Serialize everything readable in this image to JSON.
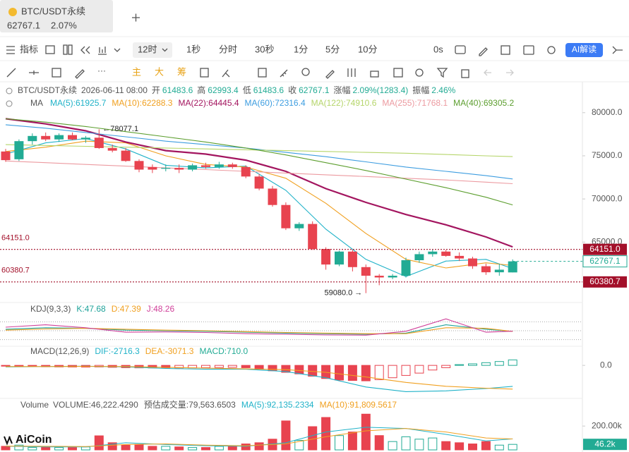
{
  "tab": {
    "title": "BTC/USDT永续",
    "change": "2.07%"
  },
  "toolbar": {
    "indicator": "指标",
    "interval": "12时",
    "intervals": [
      "1秒",
      "分时",
      "30秒",
      "1分",
      "5分",
      "10分"
    ],
    "countdown": "0s",
    "ai": "AI解读"
  },
  "draw_toolbar": {
    "buttons": [
      "主",
      "大",
      "筹"
    ]
  },
  "logo": "AiCoin",
  "chart_data": [
    {
      "type": "candlestick",
      "symbol": "BTC/USDT永续",
      "time": "2026-06-11 08:00",
      "fields": {
        "open": "开",
        "high": "高",
        "low": "低",
        "close": "收"
      },
      "change": {
        "name": "涨幅",
        "label": "2.09%(1283.4)"
      },
      "amplitude": {
        "name": "振幅",
        "label": "2.46%"
      },
      "open": [
        75500,
        74600,
        76700,
        77300,
        76900,
        77400,
        76900,
        77100,
        75900,
        75600,
        74400,
        73700,
        73500,
        73600,
        73400,
        73900,
        73700,
        74000,
        73700,
        72600,
        71200,
        69300,
        66600,
        67100,
        64200,
        62400,
        63900,
        62100,
        61100,
        60900,
        61100,
        62900,
        63600,
        63900,
        63400,
        63100,
        62200,
        61500,
        61483.6
      ],
      "high": [
        75800,
        76900,
        77600,
        77700,
        77600,
        77700,
        77300,
        78077.1,
        76300,
        75900,
        74600,
        74000,
        74000,
        74000,
        74100,
        74200,
        74300,
        74200,
        73900,
        72900,
        71500,
        69600,
        67300,
        67400,
        64400,
        64000,
        64100,
        62400,
        61300,
        61300,
        63200,
        63900,
        64151,
        64100,
        63800,
        63300,
        62500,
        62500,
        62993.4
      ],
      "low": [
        74300,
        74400,
        76300,
        76700,
        76600,
        76800,
        76500,
        75800,
        75400,
        74300,
        73100,
        73000,
        73200,
        73000,
        73200,
        73500,
        73500,
        73500,
        72400,
        71000,
        69100,
        66400,
        66300,
        64100,
        61800,
        62200,
        61600,
        59080,
        60000,
        60700,
        60900,
        62600,
        63300,
        63300,
        62800,
        61900,
        61200,
        61100,
        61483.6
      ],
      "close": [
        74500,
        76700,
        77300,
        76900,
        77400,
        76900,
        77100,
        75900,
        75600,
        74400,
        73400,
        73400,
        73600,
        73400,
        73900,
        73700,
        74000,
        73700,
        72600,
        71200,
        69300,
        66600,
        67100,
        64200,
        62400,
        63900,
        62100,
        61100,
        60900,
        61100,
        62900,
        63600,
        63900,
        63400,
        63100,
        62200,
        61500,
        61800,
        62767.1
      ],
      "up_color": "#22ab94",
      "down_color": "#e8434f",
      "ylim": [
        58200,
        80800
      ],
      "yticks": [
        {
          "value": 80000,
          "label": "80000.0"
        },
        {
          "value": 75000,
          "label": "75000.0"
        },
        {
          "value": 70000,
          "label": "70000.0"
        },
        {
          "value": 65000,
          "label": "65000.0"
        }
      ],
      "ma_title": "MA",
      "line_x": [
        0,
        3,
        6,
        9,
        12,
        15,
        18,
        21,
        24,
        27,
        30,
        33,
        36,
        38
      ],
      "series": [
        {
          "name": "MA(5):",
          "color": "#20b2c8",
          "values": [
            75200,
            76500,
            77000,
            75800,
            73900,
            73600,
            73800,
            71000,
            66500,
            63000,
            61000,
            62800,
            63000,
            61925.7
          ]
        },
        {
          "name": "MA(10):",
          "color": "#f0a020",
          "values": [
            75500,
            76000,
            76700,
            76500,
            75000,
            74000,
            73700,
            72400,
            69500,
            66000,
            63000,
            62000,
            62600,
            62288.3
          ]
        },
        {
          "name": "MA(22):",
          "color": "#a3155f",
          "values": [
            79300,
            78700,
            77900,
            76600,
            75600,
            75200,
            74500,
            73200,
            71200,
            69600,
            68200,
            67000,
            65600,
            64445.4
          ]
        },
        {
          "name": "MA(60):",
          "color": "#3d9de0",
          "values": [
            78600,
            78200,
            77700,
            77200,
            76700,
            76300,
            75900,
            75400,
            74900,
            74300,
            73700,
            73200,
            72700,
            72316.4
          ]
        },
        {
          "name": "MA(122):",
          "color": "#b5d56a",
          "values": [
            76300,
            76200,
            76100,
            76000,
            75900,
            75800,
            75700,
            75600,
            75500,
            75400,
            75300,
            75150,
            75000,
            74910.6
          ]
        },
        {
          "name": "MA(255):",
          "color": "#ec9aa0",
          "values": [
            74400,
            74200,
            74000,
            73800,
            73600,
            73400,
            73200,
            73000,
            72800,
            72600,
            72400,
            72200,
            71950,
            71768.1
          ]
        },
        {
          "name": "MA(40):",
          "color": "#5c9e2e",
          "values": [
            79300,
            78900,
            78400,
            77800,
            77200,
            76600,
            75900,
            75100,
            74200,
            73300,
            72300,
            71300,
            70200,
            69305.2
          ]
        }
      ],
      "price_lines": [
        {
          "value": 64151,
          "label": "64151.0"
        },
        {
          "value": 60380.7,
          "label": "60380.7"
        }
      ],
      "price_line_color": "#a3102a",
      "annotations": [
        {
          "value": 78077.1,
          "label": "←78077.1"
        },
        {
          "value": 59080,
          "label": "59080.0 →"
        }
      ]
    },
    {
      "type": "line",
      "title": "KDJ(9,3,3)",
      "line_x": [
        0,
        3,
        6,
        9,
        12,
        15,
        18,
        21,
        24,
        27,
        30,
        33,
        36,
        38
      ],
      "ylim": [
        0,
        100
      ],
      "reference_lines": [
        20,
        50,
        80
      ],
      "series": [
        {
          "name": "K:",
          "color": "#1fa39a",
          "values": [
            55,
            60,
            58,
            52,
            50,
            48,
            45,
            42,
            40,
            38,
            42,
            70,
            55,
            47.68
          ]
        },
        {
          "name": "D:",
          "color": "#f0a020",
          "values": [
            52,
            56,
            58,
            55,
            52,
            50,
            47,
            44,
            42,
            40,
            40,
            60,
            58,
            47.39
          ]
        },
        {
          "name": "J:",
          "color": "#d0409a",
          "values": [
            62,
            70,
            60,
            45,
            46,
            44,
            40,
            38,
            36,
            35,
            48,
            90,
            45,
            48.26
          ]
        }
      ]
    },
    {
      "type": "macd",
      "title": "MACD(12,26,9)",
      "line_x": [
        0,
        3,
        6,
        9,
        12,
        15,
        18,
        21,
        24,
        27,
        30,
        33,
        36,
        38
      ],
      "ylim": [
        -4000,
        1200
      ],
      "yticks": [
        {
          "value": 0,
          "label": "0.0"
        }
      ],
      "series": [
        {
          "name": "DIF:",
          "color": "#20b2c8",
          "values": [
            -200,
            -150,
            -100,
            -200,
            -400,
            -500,
            -500,
            -800,
            -1600,
            -2800,
            -3400,
            -3300,
            -3000,
            -2716.3
          ]
        },
        {
          "name": "DEA:",
          "color": "#f0a020",
          "values": [
            -150,
            -150,
            -130,
            -150,
            -250,
            -350,
            -450,
            -550,
            -900,
            -1500,
            -2200,
            -2700,
            -2950,
            -3071.3
          ]
        }
      ],
      "histogram": {
        "name": "MACD:",
        "color": "#22ab94",
        "negative_color": "#e8434f",
        "values": [
          -100,
          -120,
          -150,
          -180,
          -200,
          -210,
          -220,
          -200,
          -250,
          -300,
          -320,
          -330,
          -340,
          -330,
          -320,
          -300,
          -280,
          -260,
          -300,
          -500,
          -700,
          -900,
          -1100,
          -1400,
          -1700,
          -1900,
          -1950,
          -2000,
          -1850,
          -1600,
          -1300,
          -1000,
          -600,
          -300,
          100,
          200,
          350,
          500,
          710
        ],
        "value_labels": [
          null,
          null,
          null,
          null,
          null,
          null,
          null,
          null,
          null,
          null,
          null,
          null,
          null,
          null,
          null,
          null,
          null,
          null,
          null,
          null,
          null,
          null,
          null,
          null,
          null,
          null,
          null,
          null,
          null,
          null,
          null,
          null,
          null,
          null,
          null,
          null,
          null,
          null,
          "710.0"
        ]
      }
    },
    {
      "type": "bar",
      "title": "Volume",
      "ylim": [
        0,
        310000
      ],
      "yticks": [
        {
          "value": 200000,
          "label": "200.00k"
        }
      ],
      "volume": {
        "name": "VOLUME:",
        "values": [
          30000,
          40000,
          20000,
          25000,
          20000,
          20000,
          25000,
          118000,
          60000,
          40000,
          45000,
          30000,
          30000,
          25000,
          20000,
          20000,
          30000,
          35000,
          50000,
          60000,
          90000,
          243000,
          80000,
          195000,
          272000,
          120000,
          150000,
          300000,
          120000,
          70000,
          110000,
          90000,
          100000,
          70000,
          60000,
          50000,
          70000,
          40000,
          46222.429
        ],
        "value_labels": [
          null,
          null,
          null,
          null,
          null,
          null,
          null,
          null,
          null,
          null,
          null,
          null,
          null,
          null,
          null,
          null,
          null,
          null,
          null,
          null,
          null,
          null,
          null,
          null,
          null,
          null,
          null,
          null,
          null,
          null,
          null,
          null,
          null,
          null,
          null,
          null,
          null,
          null,
          "46,222.4290"
        ]
      },
      "estimated": {
        "name": "预估成交量:",
        "value": 79563.6503,
        "label": "79,563.6503"
      },
      "current_tag": {
        "value": 46222.429,
        "label": "46.2k"
      },
      "line_x": [
        0,
        3,
        6,
        9,
        12,
        15,
        18,
        21,
        24,
        27,
        30,
        33,
        36,
        38
      ],
      "series": [
        {
          "name": "MA(5):",
          "color": "#20b2c8",
          "values": [
            30000,
            25000,
            25000,
            60000,
            45000,
            35000,
            30000,
            60000,
            150000,
            190000,
            180000,
            130000,
            75000,
            92135.2334
          ],
          "value_labels": [
            null,
            null,
            null,
            null,
            null,
            null,
            null,
            null,
            null,
            null,
            null,
            null,
            null,
            "92,135.2334"
          ]
        },
        {
          "name": "MA(10):",
          "color": "#f0a020",
          "values": [
            32000,
            30000,
            28000,
            45000,
            50000,
            40000,
            35000,
            50000,
            110000,
            160000,
            180000,
            150000,
            100000,
            91809.5617
          ],
          "value_labels": [
            null,
            null,
            null,
            null,
            null,
            null,
            null,
            null,
            null,
            null,
            null,
            null,
            null,
            "91,809.5617"
          ]
        }
      ]
    }
  ]
}
